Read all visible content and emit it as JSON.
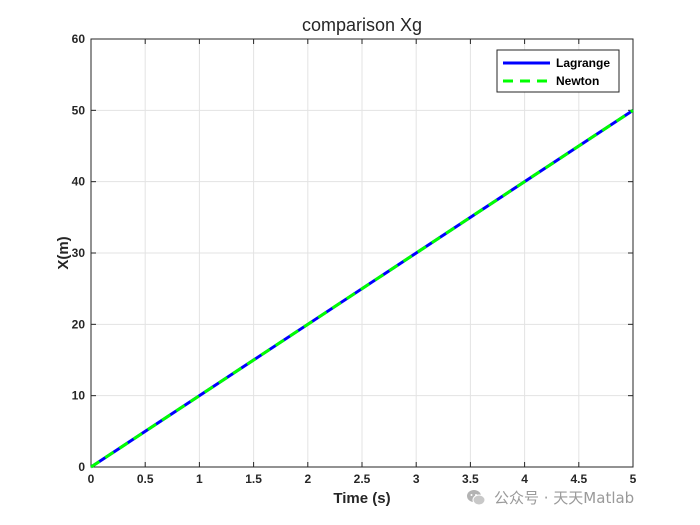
{
  "chart_data": {
    "type": "line",
    "title": "comparison Xg",
    "xlabel": "Time (s)",
    "ylabel": "X(m)",
    "xlim": [
      0,
      5
    ],
    "ylim": [
      0,
      60
    ],
    "xticks": [
      "0",
      "0.5",
      "1",
      "1.5",
      "2",
      "2.5",
      "3",
      "3.5",
      "4",
      "4.5",
      "5"
    ],
    "yticks": [
      "0",
      "10",
      "20",
      "30",
      "40",
      "50",
      "60"
    ],
    "grid": true,
    "legend_position": "top-right",
    "series": [
      {
        "name": "Lagrange",
        "color": "#0000ff",
        "style": "solid",
        "x": [
          0,
          5
        ],
        "y": [
          0,
          50
        ]
      },
      {
        "name": "Newton",
        "color": "#00ff00",
        "style": "dashed",
        "x": [
          0,
          5
        ],
        "y": [
          0,
          50
        ]
      }
    ]
  },
  "watermark": {
    "text": "公众号 · 天天Matlab",
    "icon": "wechat-icon"
  }
}
